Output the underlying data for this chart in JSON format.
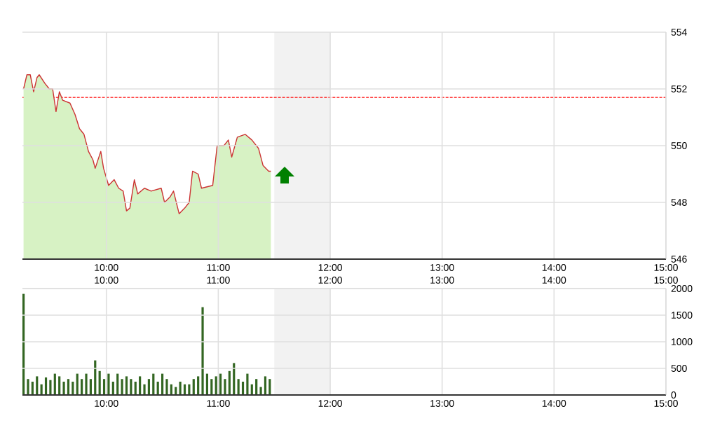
{
  "chart_data": [
    {
      "type": "line",
      "grid": true,
      "xlim": [
        9.25,
        15
      ],
      "ylim": [
        546,
        554
      ],
      "xticks": [
        {
          "value": 10,
          "label": "10:00"
        },
        {
          "value": 11,
          "label": "11:00"
        },
        {
          "value": 12,
          "label": "12:00"
        },
        {
          "value": 13,
          "label": "13:00"
        },
        {
          "value": 14,
          "label": "14:00"
        },
        {
          "value": 15,
          "label": "15:00"
        }
      ],
      "yticks": [
        546,
        548,
        550,
        552,
        554
      ],
      "ref_lines": [
        {
          "axis": "y",
          "value": 551.7,
          "color": "#ff0000",
          "line_style": "dashed"
        }
      ],
      "bands": [
        {
          "axis": "x",
          "from": 11.5,
          "to": 12,
          "color": "#f2f2f2"
        }
      ],
      "x": [
        9.26,
        9.29,
        9.32,
        9.35,
        9.38,
        9.4,
        9.45,
        9.49,
        9.52,
        9.55,
        9.58,
        9.61,
        9.675,
        9.72,
        9.76,
        9.8,
        9.84,
        9.88,
        9.9,
        9.95,
        9.975,
        10.02,
        10.07,
        10.11,
        10.15,
        10.18,
        10.21,
        10.25,
        10.28,
        10.34,
        10.4,
        10.49,
        10.52,
        10.57,
        10.6,
        10.65,
        10.7,
        10.74,
        10.77,
        10.82,
        10.85,
        10.95,
        10.99,
        11.05,
        11.09,
        11.12,
        11.17,
        11.24,
        11.3,
        11.36,
        11.4,
        11.45,
        11.47
      ],
      "series": [
        {
          "type": "area",
          "color": "#d7f2c4",
          "values": [
            552.0,
            552.5,
            552.5,
            551.9,
            552.4,
            552.5,
            552.2,
            552.0,
            552.0,
            551.2,
            551.9,
            551.6,
            551.5,
            551.1,
            550.6,
            550.4,
            549.8,
            549.5,
            549.2,
            549.8,
            549.2,
            548.6,
            548.8,
            548.5,
            548.4,
            547.7,
            547.8,
            548.8,
            548.3,
            548.5,
            548.4,
            548.5,
            548.0,
            548.2,
            548.4,
            547.6,
            547.8,
            548.0,
            549.1,
            549.0,
            548.5,
            548.6,
            550.0,
            550.0,
            550.2,
            549.6,
            550.3,
            550.4,
            550.2,
            549.9,
            549.3,
            549.1,
            549.1
          ]
        },
        {
          "type": "line",
          "color": "#cc3333",
          "values": [
            552.0,
            552.5,
            552.5,
            551.9,
            552.4,
            552.5,
            552.2,
            552.0,
            552.0,
            551.2,
            551.9,
            551.6,
            551.5,
            551.1,
            550.6,
            550.4,
            549.8,
            549.5,
            549.2,
            549.8,
            549.2,
            548.6,
            548.8,
            548.5,
            548.4,
            547.7,
            547.8,
            548.8,
            548.3,
            548.5,
            548.4,
            548.5,
            548.0,
            548.2,
            548.4,
            547.6,
            547.8,
            548.0,
            549.1,
            549.0,
            548.5,
            548.6,
            550.0,
            550.0,
            550.2,
            549.6,
            550.3,
            550.4,
            550.2,
            549.9,
            549.3,
            549.1,
            549.1
          ]
        }
      ]
    },
    {
      "type": "bar",
      "color": "#336622",
      "grid": true,
      "xlim": [
        9.25,
        15
      ],
      "ylim": [
        0,
        2000
      ],
      "xticks": [
        {
          "value": 10,
          "label": "10:00"
        },
        {
          "value": 11,
          "label": "11:00"
        },
        {
          "value": 12,
          "label": "12:00"
        },
        {
          "value": 13,
          "label": "13:00"
        },
        {
          "value": 14,
          "label": "14:00"
        },
        {
          "value": 15,
          "label": "15:00"
        }
      ],
      "x2lim": [
        9.25,
        15
      ],
      "x2ticks": [
        {
          "value": 10,
          "label": "10:00"
        },
        {
          "value": 11,
          "label": "11:00"
        },
        {
          "value": 12,
          "label": "12:00"
        },
        {
          "value": 13,
          "label": "13:00"
        },
        {
          "value": 14,
          "label": "14:00"
        },
        {
          "value": 15,
          "label": "15:00"
        }
      ],
      "yticks": [
        0,
        500,
        1000,
        1500,
        2000
      ],
      "bands": [
        {
          "axis": "x",
          "from": 11.5,
          "to": 12,
          "color": "#f2f2f2"
        }
      ],
      "x": [
        9.26,
        9.3,
        9.34,
        9.38,
        9.42,
        9.46,
        9.5,
        9.54,
        9.58,
        9.62,
        9.66,
        9.7,
        9.74,
        9.78,
        9.82,
        9.86,
        9.9,
        9.94,
        9.98,
        10.02,
        10.06,
        10.1,
        10.14,
        10.18,
        10.22,
        10.26,
        10.3,
        10.34,
        10.38,
        10.42,
        10.46,
        10.5,
        10.54,
        10.58,
        10.62,
        10.66,
        10.7,
        10.74,
        10.78,
        10.82,
        10.86,
        10.9,
        10.94,
        10.98,
        11.02,
        11.06,
        11.1,
        11.14,
        11.18,
        11.22,
        11.26,
        11.3,
        11.34,
        11.38,
        11.42,
        11.46
      ],
      "values": [
        1900,
        300,
        250,
        350,
        200,
        330,
        280,
        400,
        350,
        250,
        300,
        250,
        400,
        300,
        400,
        300,
        650,
        450,
        300,
        400,
        250,
        400,
        300,
        350,
        300,
        250,
        350,
        200,
        300,
        400,
        250,
        400,
        300,
        200,
        150,
        250,
        200,
        200,
        300,
        350,
        1650,
        400,
        300,
        350,
        400,
        300,
        450,
        600,
        300,
        250,
        400,
        200,
        300,
        150,
        350,
        300
      ]
    }
  ]
}
